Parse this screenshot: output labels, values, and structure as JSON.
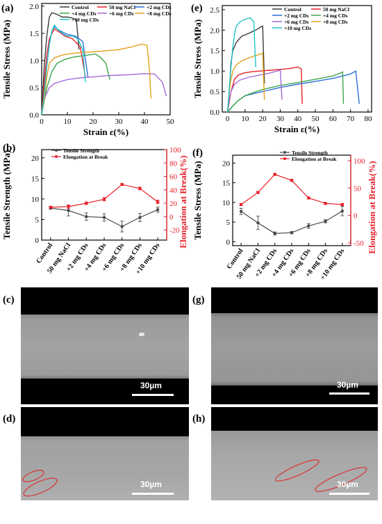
{
  "panels": {
    "a": "(a)",
    "b": "(b)",
    "c": "(c)",
    "d": "(d)",
    "e": "(e)",
    "f": "(f)",
    "g": "(g)",
    "h": "(h)"
  },
  "scale_label": "30µm",
  "chart_data": [
    {
      "id": "a",
      "type": "line",
      "xlabel": "Strain ε(%)",
      "ylabel": "Tensile Stress (MPa)",
      "xlim": [
        0,
        50
      ],
      "ylim": [
        0,
        2.05
      ],
      "xticks": [
        0,
        10,
        20,
        30,
        40,
        50
      ],
      "yticks": [
        0.0,
        0.5,
        1.0,
        1.5,
        2.0
      ],
      "legend": "top",
      "series": [
        {
          "name": "Control",
          "color": "#3a3a3a",
          "x": [
            0,
            1,
            2,
            3,
            4,
            6,
            8,
            10,
            12,
            13.5,
            14.5
          ],
          "y": [
            0,
            0.9,
            1.45,
            1.8,
            1.88,
            1.85,
            1.8,
            1.8,
            1.78,
            1.75,
            1.2
          ]
        },
        {
          "name": "50 mg NaCl",
          "color": "#e8202a",
          "x": [
            0,
            1,
            2,
            3,
            4,
            5,
            7,
            9,
            12,
            15,
            17
          ],
          "y": [
            0,
            0.6,
            1.1,
            1.4,
            1.5,
            1.58,
            1.52,
            1.45,
            1.4,
            1.25,
            0.7
          ]
        },
        {
          "name": "+2 mg CDs",
          "color": "#2b6fd6",
          "x": [
            0,
            1,
            2,
            3,
            4,
            5,
            7,
            10,
            13,
            16,
            18
          ],
          "y": [
            0,
            0.4,
            0.9,
            1.3,
            1.55,
            1.62,
            1.55,
            1.48,
            1.45,
            1.35,
            0.7
          ]
        },
        {
          "name": "+4 mg CDs",
          "color": "#3aa64b",
          "x": [
            0,
            2,
            4,
            6,
            9,
            12,
            15,
            18,
            21,
            23,
            25,
            26.5
          ],
          "y": [
            0,
            0.5,
            0.8,
            0.95,
            1.02,
            1.06,
            1.08,
            1.1,
            1.12,
            1.05,
            0.95,
            0.65
          ]
        },
        {
          "name": "+6 mg CDs",
          "color": "#a569d8",
          "x": [
            0,
            1,
            3,
            5,
            10,
            15,
            20,
            25,
            30,
            35,
            40,
            44,
            47,
            48.5
          ],
          "y": [
            0,
            0.3,
            0.5,
            0.58,
            0.65,
            0.68,
            0.7,
            0.72,
            0.73,
            0.74,
            0.76,
            0.75,
            0.6,
            0.35
          ]
        },
        {
          "name": "+8 mg CDs",
          "color": "#e0a21c",
          "x": [
            0,
            1,
            2,
            3,
            5,
            8,
            12,
            16,
            20,
            25,
            30,
            35,
            39,
            41,
            42,
            42.5
          ],
          "y": [
            0,
            0.3,
            0.7,
            0.95,
            1.05,
            1.1,
            1.13,
            1.15,
            1.16,
            1.18,
            1.2,
            1.25,
            1.3,
            1.28,
            0.8,
            0.3
          ]
        },
        {
          "name": "+10 mg CDs",
          "color": "#22c4c8",
          "x": [
            0,
            1,
            2,
            3,
            4,
            5,
            6,
            8,
            10,
            12,
            14,
            16,
            17
          ],
          "y": [
            0,
            0.4,
            0.9,
            1.3,
            1.55,
            1.65,
            1.58,
            1.5,
            1.45,
            1.45,
            1.4,
            1.2,
            0.6
          ]
        }
      ]
    },
    {
      "id": "b",
      "type": "line",
      "xlabel": "",
      "ylabel": "Tensile Strength (MPa)",
      "y2label": "Elongation at Break(%)",
      "ylim": [
        0,
        22
      ],
      "y2lim": [
        -35,
        100
      ],
      "yticks": [
        0,
        5,
        10,
        15,
        20
      ],
      "y2ticks": [
        -20,
        0,
        20,
        40,
        60,
        80,
        100
      ],
      "categories": [
        "Control",
        "50 mg NaCl",
        "+2 mg CDs",
        "+4 mg CDs",
        "+6 mg CDs",
        "+8 mg CDs",
        "+10 mg CDs"
      ],
      "legend": "top-left",
      "series": [
        {
          "name": "Tensile Strength",
          "axis": "left",
          "color": "#4a4a4a",
          "values": [
            7.8,
            7.2,
            5.7,
            5.5,
            3.3,
            5.5,
            7.4
          ],
          "err": [
            0.3,
            1.3,
            0.9,
            0.9,
            1.3,
            1.0,
            0.6
          ]
        },
        {
          "name": "Elongation at Break",
          "axis": "right",
          "color": "#e8202a",
          "values": [
            14,
            15,
            20,
            26,
            48,
            42,
            22
          ],
          "err": [
            1.5,
            2.5,
            2,
            2.5,
            1.5,
            2,
            2.5
          ]
        }
      ]
    },
    {
      "id": "e",
      "type": "line",
      "xlabel": "Strain ε(%)",
      "ylabel": "Tensile Stress (MPa)",
      "xlim": [
        -3,
        82
      ],
      "ylim": [
        0,
        2.6
      ],
      "xticks": [
        0,
        10,
        20,
        30,
        40,
        50,
        60,
        70,
        80
      ],
      "yticks": [
        0.0,
        0.5,
        1.0,
        1.5,
        2.0,
        2.5
      ],
      "legend": "top-right",
      "series": [
        {
          "name": "Control",
          "color": "#3a3a3a",
          "x": [
            0,
            1,
            2,
            3,
            5,
            8,
            12,
            16,
            19,
            20,
            21
          ],
          "y": [
            0,
            0.5,
            1.2,
            1.5,
            1.7,
            1.85,
            1.92,
            2.0,
            2.08,
            2.1,
            0.7
          ]
        },
        {
          "name": "50 mg NaCl",
          "color": "#e8202a",
          "x": [
            0,
            2,
            4,
            6,
            9,
            13,
            18,
            24,
            30,
            35,
            40,
            42,
            42.5
          ],
          "y": [
            0,
            0.5,
            0.8,
            0.9,
            0.95,
            0.98,
            1.0,
            1.02,
            1.04,
            1.06,
            1.1,
            1.05,
            0.2
          ]
        },
        {
          "name": "+2 mg CDs",
          "color": "#2b6fd6",
          "x": [
            0,
            3,
            6,
            10,
            15,
            20,
            30,
            40,
            50,
            60,
            70,
            73,
            75
          ],
          "y": [
            0,
            0.15,
            0.28,
            0.4,
            0.45,
            0.5,
            0.6,
            0.68,
            0.75,
            0.82,
            0.93,
            1.0,
            0.2
          ]
        },
        {
          "name": "+4 mg CDs",
          "color": "#3aa64b",
          "x": [
            0,
            3,
            6,
            10,
            15,
            20,
            30,
            40,
            50,
            60,
            64,
            65.5,
            66
          ],
          "y": [
            0,
            0.15,
            0.28,
            0.4,
            0.48,
            0.55,
            0.65,
            0.72,
            0.8,
            0.88,
            0.95,
            0.98,
            0.2
          ]
        },
        {
          "name": "+6 mg CDs",
          "color": "#a569d8",
          "x": [
            0,
            1,
            2,
            4,
            7,
            12,
            18,
            24,
            28,
            30,
            31
          ],
          "y": [
            0,
            0.3,
            0.5,
            0.68,
            0.78,
            0.85,
            0.9,
            0.95,
            1.0,
            1.02,
            0.3
          ]
        },
        {
          "name": "+8 mg CDs",
          "color": "#e0a21c",
          "x": [
            0,
            1,
            2,
            3,
            5,
            8,
            12,
            16,
            19,
            20,
            21
          ],
          "y": [
            0,
            0.5,
            0.8,
            1.0,
            1.15,
            1.25,
            1.32,
            1.38,
            1.42,
            1.44,
            0.3
          ]
        },
        {
          "name": "+10 mg CDs",
          "color": "#22c4c8",
          "x": [
            0,
            1,
            2,
            3,
            4,
            5,
            7,
            9,
            11,
            13,
            15,
            16
          ],
          "y": [
            0,
            0.6,
            1.1,
            1.6,
            1.9,
            2.1,
            2.2,
            2.25,
            2.28,
            2.3,
            2.2,
            1.1
          ]
        }
      ]
    },
    {
      "id": "f",
      "type": "line",
      "xlabel": "",
      "ylabel": "Tensile Stress (MPa)",
      "y2label": "Elongation at Break(%)",
      "ylim": [
        -1,
        22
      ],
      "y2lim": [
        -55,
        110
      ],
      "yticks": [
        0,
        5,
        10,
        15,
        20
      ],
      "y2ticks": [
        -50,
        0,
        50,
        100
      ],
      "categories": [
        "Control",
        "50 mg NaCl",
        "+2 mg CDs",
        "+4 mg CDs",
        "+6 mg CDs",
        "+8 mg CDs",
        "+10 mg CDs"
      ],
      "legend": "top-right",
      "series": [
        {
          "name": "Tensile Strength",
          "axis": "left",
          "color": "#4a4a4a",
          "values": [
            7.7,
            4.8,
            2.1,
            2.3,
            4.0,
            5.2,
            7.8
          ],
          "err": [
            0.8,
            1.7,
            0.4,
            0.3,
            0.6,
            0.4,
            1.2
          ]
        },
        {
          "name": "Elongation at Break",
          "axis": "right",
          "color": "#e8202a",
          "values": [
            20,
            42,
            75,
            64,
            32,
            22,
            20
          ],
          "err": [
            2,
            2,
            2,
            2,
            2,
            2,
            2
          ]
        }
      ]
    }
  ]
}
